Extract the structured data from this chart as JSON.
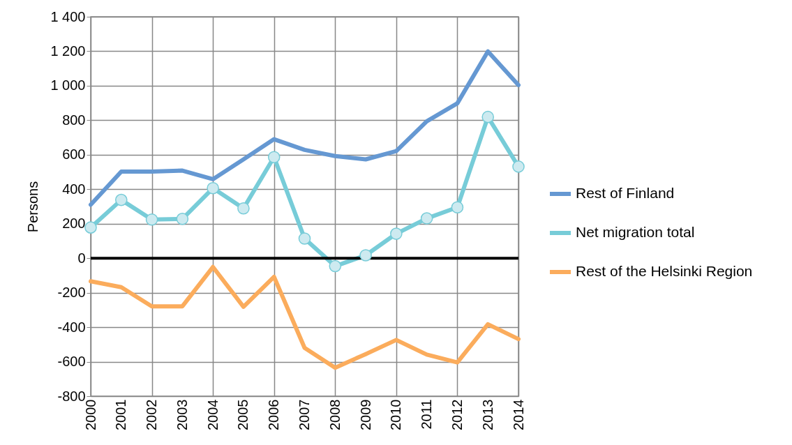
{
  "chart_data": {
    "type": "line",
    "ylabel": "Persons",
    "x": [
      2000,
      2001,
      2002,
      2003,
      2004,
      2005,
      2006,
      2007,
      2008,
      2009,
      2010,
      2011,
      2012,
      2013,
      2014
    ],
    "xlim": [
      2000,
      2014
    ],
    "xticks": [
      2000,
      2001,
      2002,
      2003,
      2004,
      2005,
      2006,
      2007,
      2008,
      2009,
      2010,
      2011,
      2012,
      2013,
      2014
    ],
    "ylim": [
      -800,
      1400
    ],
    "yticks": [
      -800,
      -600,
      -400,
      -200,
      0,
      200,
      400,
      600,
      800,
      {
        "value": 1000,
        "label": "1 000"
      },
      {
        "value": 1200,
        "label": "1 200"
      },
      {
        "value": 1400,
        "label": "1 400"
      }
    ],
    "series": [
      {
        "name": "Rest of Finland",
        "color": "#6598d2",
        "marker": "none",
        "values": [
          310,
          502,
          502,
          508,
          458,
          573,
          690,
          628,
          592,
          573,
          621,
          794,
          898,
          1199,
          1004
        ]
      },
      {
        "name": "Net migration total",
        "color": "#77ccd8",
        "marker": "circle",
        "values": [
          178,
          338,
          224,
          228,
          406,
          289,
          586,
          114,
          -46,
          17,
          142,
          231,
          295,
          819,
          531
        ]
      },
      {
        "name": "Rest of the Helsinki Region",
        "color": "#fbac5c",
        "marker": "none",
        "values": [
          -134,
          -168,
          -279,
          -279,
          -51,
          -282,
          -108,
          -520,
          -635,
          -556,
          -474,
          -559,
          -604,
          -383,
          -469
        ]
      }
    ],
    "ref_lines": [
      {
        "axis": "y",
        "value": 0,
        "color": "#000000"
      }
    ],
    "grid": true,
    "legend": "right",
    "line_style": "solid"
  }
}
